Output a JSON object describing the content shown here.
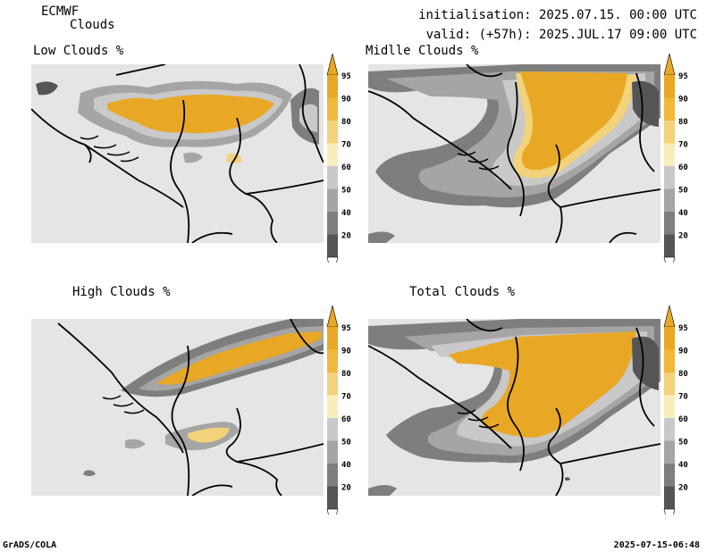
{
  "header": {
    "model": "ECMWF",
    "product": "Clouds",
    "initialisation": "initialisation: 2025.07.15. 00:00 UTC",
    "valid": "valid: (+57h): 2025.JUL.17 09:00 UTC"
  },
  "panels": [
    {
      "id": "low",
      "title": "Low Clouds %"
    },
    {
      "id": "middle",
      "title": "Midlle Clouds %"
    },
    {
      "id": "high",
      "title": "High Clouds %"
    },
    {
      "id": "total",
      "title": "Total Clouds %"
    }
  ],
  "legend": {
    "levels": [
      "95",
      "90",
      "80",
      "70",
      "60",
      "50",
      "40",
      "20"
    ],
    "colors": [
      "#e8a825",
      "#f0b93a",
      "#f2d27a",
      "#f7eebb",
      "#c9c9c9",
      "#a5a5a5",
      "#7e7e7e",
      "#555555"
    ],
    "background_color": "#e5e5e5"
  },
  "footer": {
    "left": "GrADS/COLA",
    "right": "2025-07-15-06:48"
  }
}
